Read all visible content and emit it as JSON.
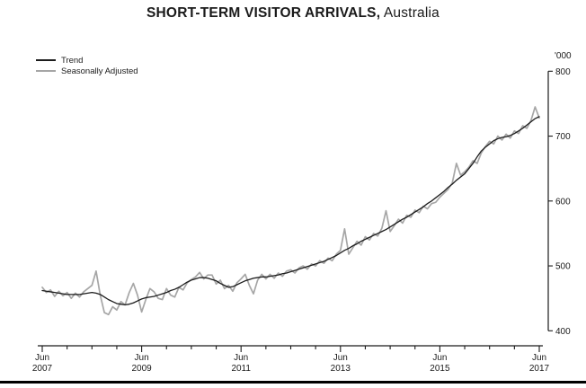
{
  "title": {
    "main": "SHORT-TERM VISITOR ARRIVALS,",
    "suffix": "Australia"
  },
  "legend": [
    {
      "label": "Trend",
      "color": "#1c1c1c"
    },
    {
      "label": "Seasonally Adjusted",
      "color": "#a6a6a6"
    }
  ],
  "y_axis": {
    "unit_label": "'000",
    "ticks": [
      400,
      500,
      600,
      700,
      800
    ]
  },
  "x_axis": {
    "major_labels": [
      {
        "month": "Jun",
        "year": "2007"
      },
      {
        "month": "Jun",
        "year": "2009"
      },
      {
        "month": "Jun",
        "year": "2011"
      },
      {
        "month": "Jun",
        "year": "2013"
      },
      {
        "month": "Jun",
        "year": "2015"
      },
      {
        "month": "Jun",
        "year": "2017"
      }
    ]
  },
  "chart_data": {
    "type": "line",
    "title": "SHORT-TERM VISITOR ARRIVALS, Australia",
    "ylabel": "'000",
    "ylim": [
      400,
      800
    ],
    "x_start": "2007-06",
    "x_end": "2017-06",
    "frequency": "monthly",
    "x_major_tick_interval_months": 24,
    "x_minor_tick_interval_months": 6,
    "legend_position": "top-left",
    "grid": false,
    "series": [
      {
        "name": "Seasonally Adjusted",
        "color": "#a6a6a6",
        "width": 1.7,
        "values": [
          467,
          459,
          463,
          453,
          461,
          454,
          459,
          450,
          458,
          452,
          460,
          465,
          470,
          492,
          455,
          428,
          425,
          437,
          432,
          445,
          440,
          459,
          473,
          455,
          429,
          448,
          465,
          460,
          450,
          448,
          465,
          455,
          452,
          467,
          463,
          474,
          479,
          483,
          490,
          480,
          486,
          486,
          472,
          478,
          465,
          470,
          461,
          474,
          480,
          487,
          470,
          457,
          478,
          487,
          480,
          487,
          481,
          489,
          484,
          492,
          494,
          489,
          497,
          500,
          495,
          503,
          500,
          508,
          504,
          512,
          508,
          518,
          524,
          557,
          518,
          528,
          538,
          532,
          545,
          540,
          550,
          546,
          558,
          585,
          553,
          562,
          572,
          566,
          578,
          575,
          586,
          582,
          592,
          588,
          596,
          598,
          606,
          612,
          618,
          628,
          658,
          640,
          645,
          652,
          662,
          658,
          674,
          684,
          692,
          688,
          700,
          694,
          703,
          697,
          708,
          704,
          716,
          712,
          724,
          745,
          728
        ]
      },
      {
        "name": "Trend",
        "color": "#1c1c1c",
        "width": 1.3,
        "values": [
          462,
          461,
          460,
          459,
          458,
          457,
          456,
          456,
          456,
          456,
          457,
          458,
          459,
          458,
          456,
          452,
          448,
          445,
          442,
          441,
          440,
          441,
          443,
          446,
          449,
          451,
          452,
          453,
          455,
          457,
          459,
          462,
          464,
          467,
          471,
          475,
          478,
          480,
          482,
          482,
          481,
          479,
          477,
          473,
          470,
          467,
          468,
          471,
          474,
          477,
          479,
          481,
          482,
          483,
          483,
          484,
          485,
          486,
          488,
          489,
          491,
          493,
          495,
          497,
          499,
          501,
          503,
          505,
          507,
          510,
          513,
          516,
          520,
          524,
          527,
          531,
          534,
          538,
          541,
          544,
          547,
          550,
          553,
          556,
          560,
          564,
          568,
          572,
          575,
          579,
          583,
          587,
          591,
          596,
          600,
          605,
          610,
          615,
          621,
          626,
          632,
          637,
          642,
          650,
          658,
          668,
          677,
          683,
          688,
          693,
          696,
          698,
          699,
          701,
          704,
          708,
          712,
          717,
          722,
          727,
          730
        ]
      }
    ]
  }
}
